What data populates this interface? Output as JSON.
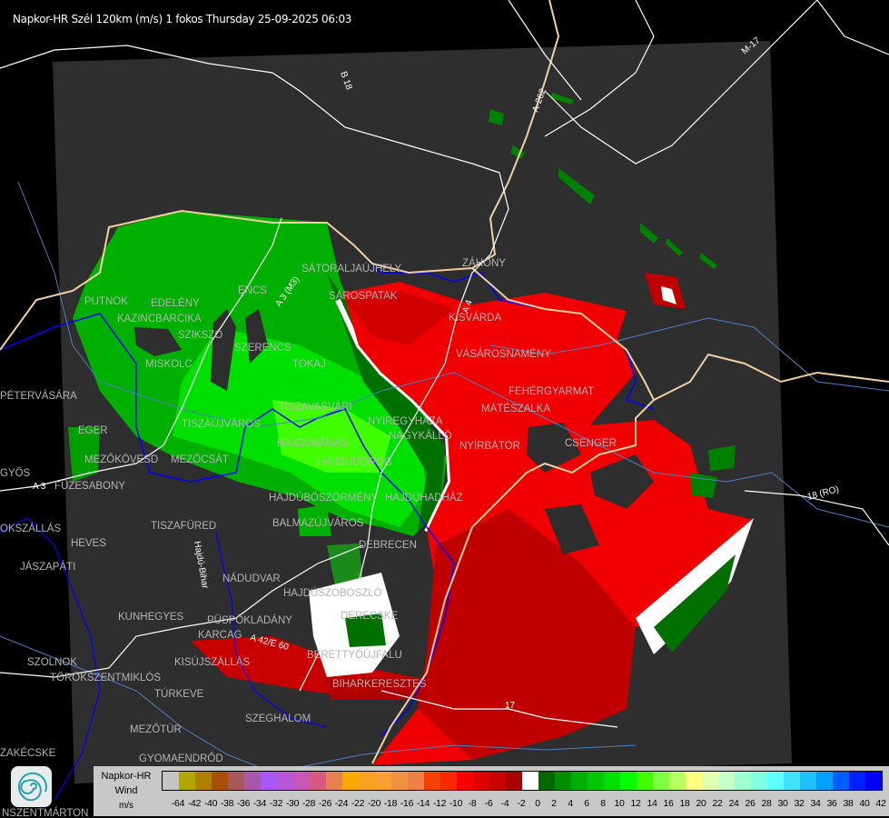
{
  "title": "Napkor-HR Szél 120km (m/s) 1 fokos Thursday 25-09-2025 06:03",
  "colors": {
    "background": "#000000",
    "radar_area": "#2e2e2e",
    "road": "#ffffff",
    "border": "#f0d0a0",
    "river_major": "#0000ff",
    "river_minor": "#4a80c0",
    "city_label": "#b4b4b4"
  },
  "map": {
    "cities": [
      "SÁTORALJAÚJHELY",
      "SÁROSPATAK",
      "ZÁHONY",
      "KISVÁRDA",
      "PUTNOK",
      "EDELÉNY",
      "KAZINCBARCIKA",
      "SZIKSZÓ",
      "SZERENCS",
      "ENCS",
      "MISKOLC",
      "TOKAJ",
      "VÁSÁROSNAMÉNY",
      "FEHÉRGYARMAT",
      "MÁTÉSZALKA",
      "TISZAVASVÁRI",
      "NYÍREGYHÁZA",
      "NAGYKÁLLÓ",
      "TISZAÚJVÁROS",
      "HAJDÚNÁNÁS",
      "HAJDÚDOROG",
      "NYÍRBÁTOR",
      "CSENGER",
      "EGER",
      "MEZŐKÖVESD",
      "MEZŐCSÁT",
      "FÜZESABONY",
      "PÉTERVÁSÁRA",
      "GYÖS",
      "HAJDÚBÖSZÖRMÉNY",
      "HAJDÚHADHÁZ",
      "BALMAZÚJVÁROS",
      "TISZAFÜRED",
      "HEVES",
      "OKSZÁLLÁS",
      "DEBRECEN",
      "JÁSZAPÁTI",
      "NÁDUDVAR",
      "HAJDÚSZOBOSZLÓ",
      "KUNHEGYES",
      "KARCAG",
      "PÜSPÖKLADÁNY",
      "DERECSKE",
      "BERETTYÓÚJFALU",
      "KISÚJSZÁLLÁS",
      "SZOLNOK",
      "TÖRÖKSZENTMIKLÓS",
      "TÚRKEVE",
      "BIHARKERESZTES",
      "SZEGHALOM",
      "MEZŐTÚR",
      "GYOMAENDRŐD",
      "ZAKÉCSKE",
      "NSZENTMÁRTON"
    ],
    "roads": [
      "B 18",
      "A-262",
      "M-17",
      "A 3",
      "A 3 (M3)",
      "A 42/E 60",
      "17",
      "18 (RO)",
      "A 4"
    ],
    "county": "Hajdú-Bihar"
  },
  "legend": {
    "title_line1": "Napkor-HR",
    "title_line2": "Wind",
    "unit": "m/s",
    "colors": [
      "#c4c4c4",
      "#b0a800",
      "#b08000",
      "#a85008",
      "#a85858",
      "#a858a8",
      "#a858f8",
      "#b858d8",
      "#c858b8",
      "#d85880",
      "#e88050",
      "#f8a800",
      "#f8a020",
      "#f8a030",
      "#f09040",
      "#f08048",
      "#f84000",
      "#f82800",
      "#f80000",
      "#e00000",
      "#c80000",
      "#a80000",
      "#ffffff",
      "#006800",
      "#009000",
      "#00b000",
      "#00c800",
      "#00e000",
      "#00ff00",
      "#40ff00",
      "#80ff40",
      "#b8ff60",
      "#ffff80",
      "#e0ffb0",
      "#c8ffc8",
      "#a0ffd0",
      "#80ffe0",
      "#60ffff",
      "#40e0ff",
      "#20c0ff",
      "#00a0ff",
      "#0060ff",
      "#0020ff",
      "#0000ff"
    ],
    "labels": [
      "-64",
      "-42",
      "-40",
      "-38",
      "-36",
      "-34",
      "-32",
      "-30",
      "-28",
      "-26",
      "-24",
      "-22",
      "-20",
      "-18",
      "-16",
      "-14",
      "-12",
      "-10",
      "-8",
      "-6",
      "-4",
      "-2",
      "0",
      "2",
      "4",
      "6",
      "8",
      "10",
      "12",
      "14",
      "16",
      "18",
      "20",
      "22",
      "24",
      "26",
      "28",
      "30",
      "32",
      "34",
      "36",
      "38",
      "40",
      "42"
    ]
  }
}
